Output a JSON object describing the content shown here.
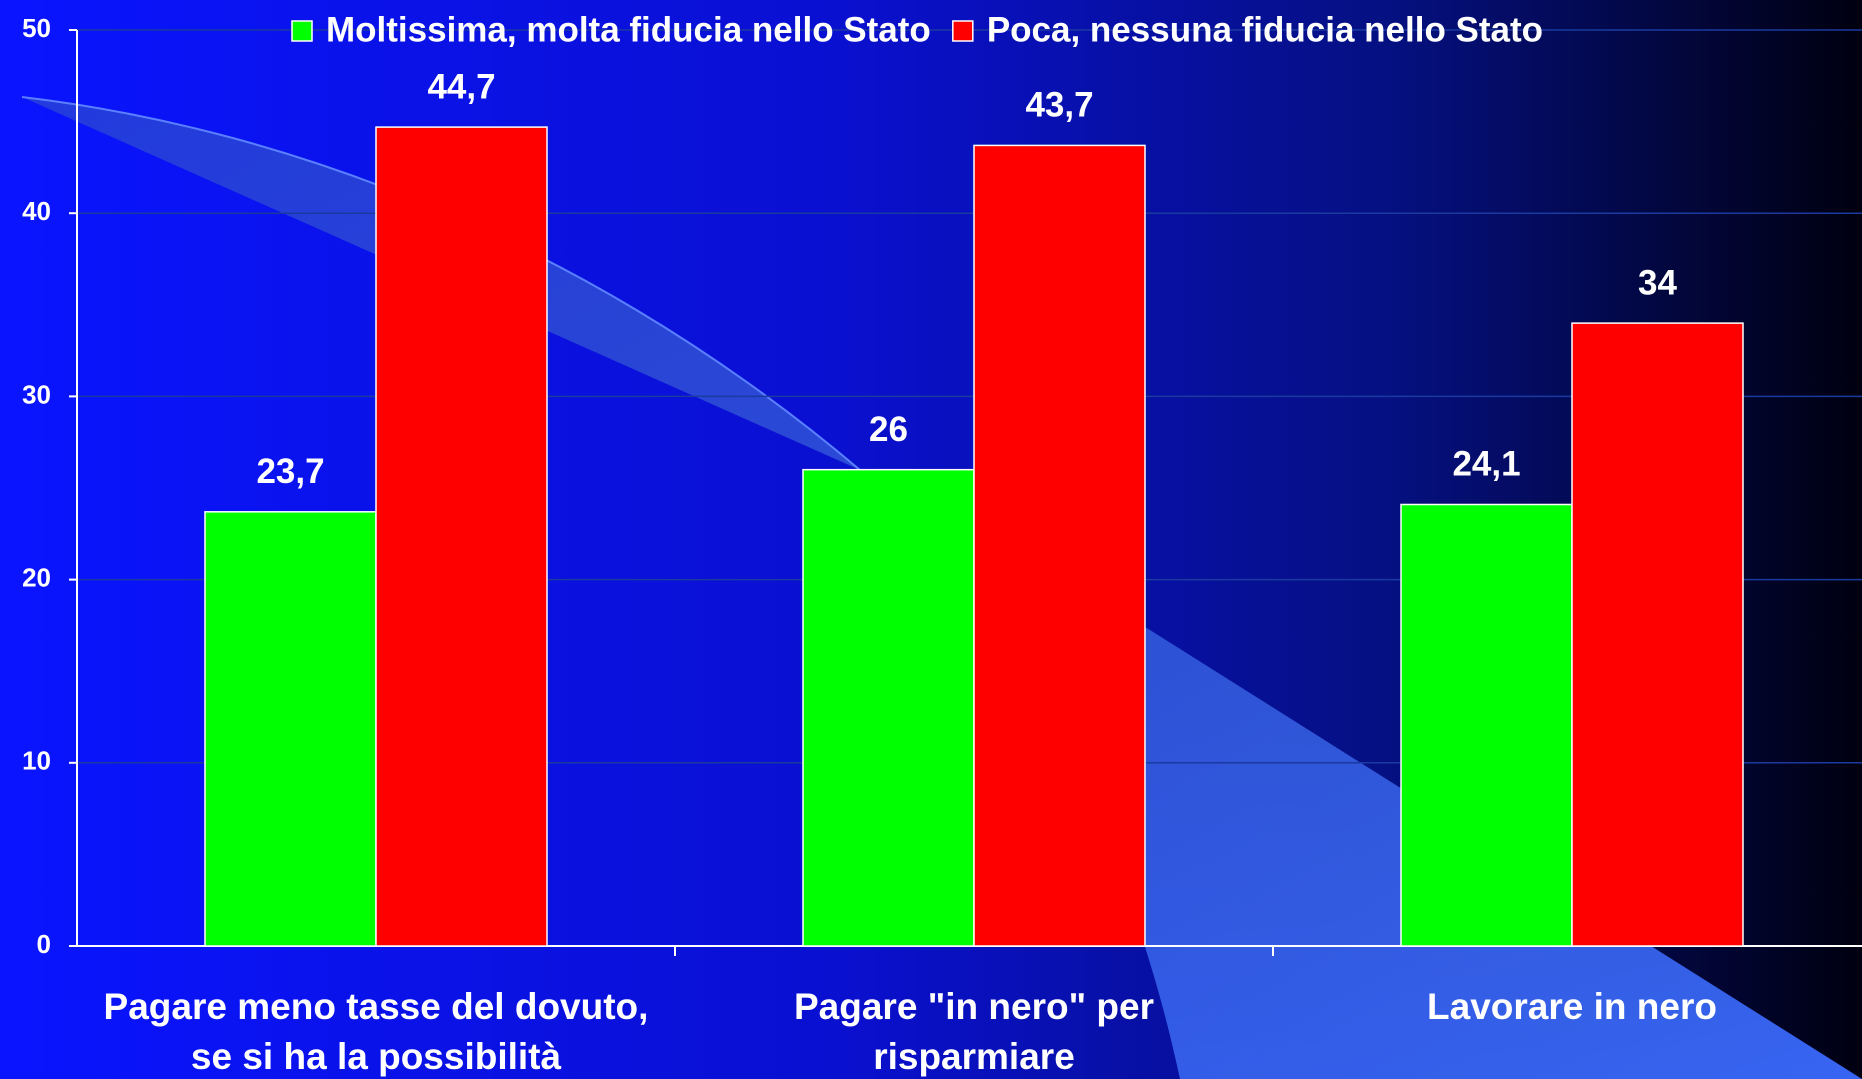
{
  "chart_data": {
    "type": "bar",
    "categories": [
      [
        "Pagare meno tasse del dovuto,",
        "se si ha la possibilità"
      ],
      [
        "Pagare \"in nero\" per",
        "risparmiare"
      ],
      [
        "Lavorare in nero"
      ]
    ],
    "series": [
      {
        "name": "Moltissima, molta fiducia nello Stato",
        "color": "#00ff00",
        "values": [
          23.7,
          26,
          24.1
        ],
        "value_labels": [
          "23,7",
          "26",
          "24,1"
        ]
      },
      {
        "name": "Poca, nessuna fiducia nello Stato",
        "color": "#ff0000",
        "values": [
          44.7,
          43.7,
          34
        ],
        "value_labels": [
          "44,7",
          "43,7",
          "34"
        ]
      }
    ],
    "ylim": [
      0,
      50
    ],
    "yticks": [
      0,
      10,
      20,
      30,
      40,
      50
    ],
    "grid": true,
    "legend": "top"
  }
}
